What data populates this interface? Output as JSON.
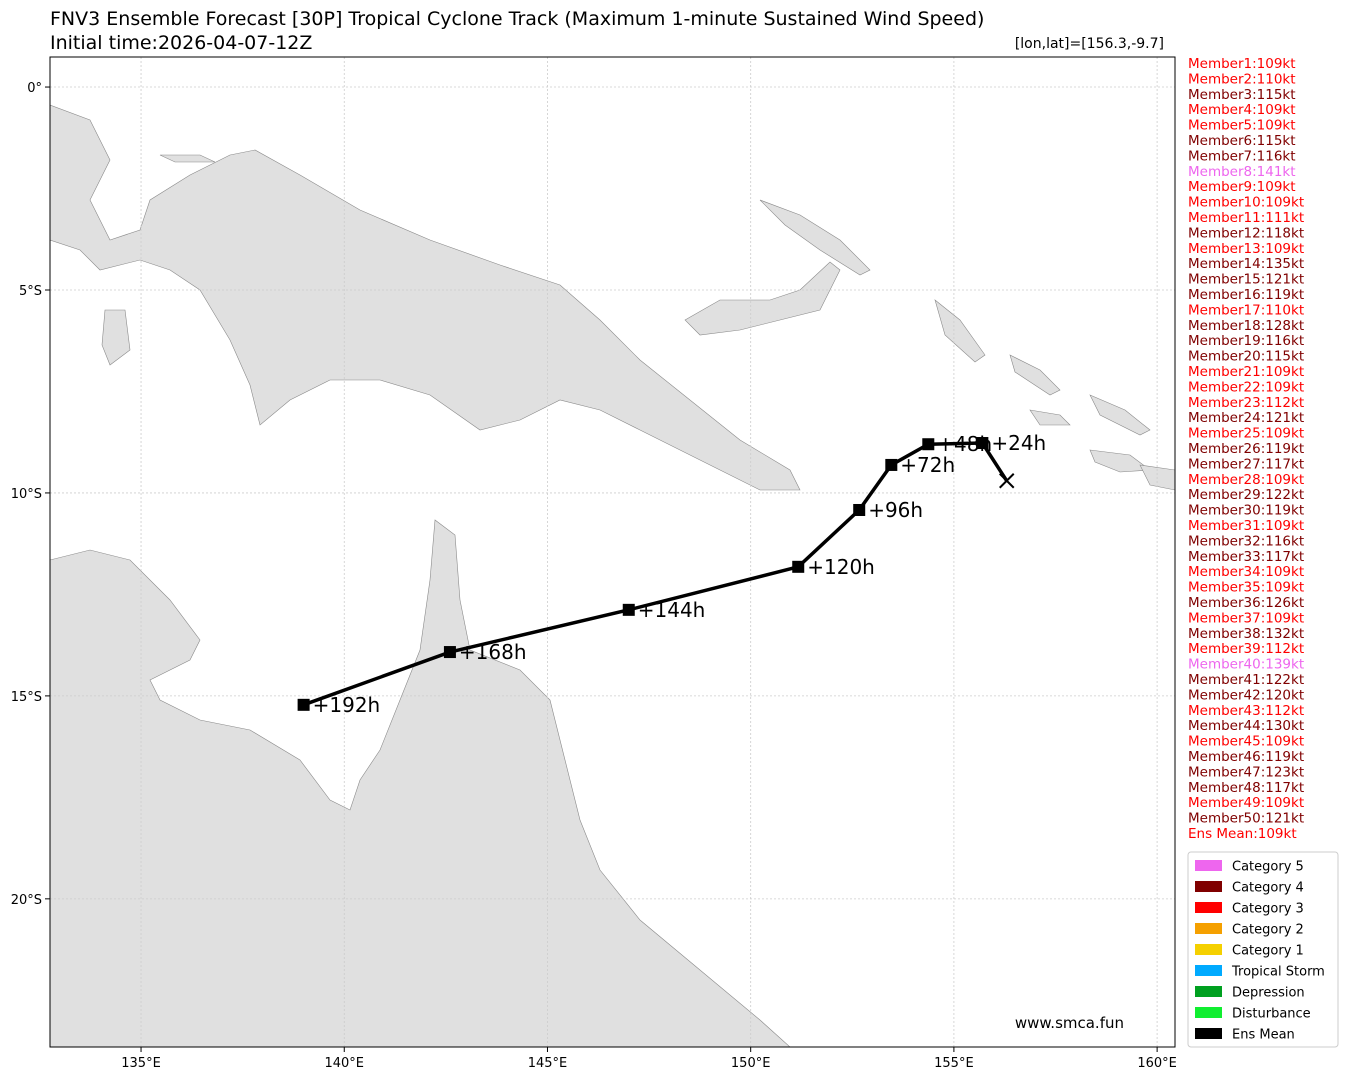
{
  "chart_data": {
    "type": "map",
    "title": "FNV3 Ensemble Forecast [30P] Tropical Cyclone Track (Maximum 1-minute Sustained Wind Speed)",
    "subtitle": "Initial time:2026-04-07-12Z",
    "position_label": "[lon,lat]=[156.3,-9.7]",
    "watermark": "www.smca.fun",
    "xlim": [
      132.76,
      160.44
    ],
    "ylim": [
      -23.65,
      0.74
    ],
    "xticks": [
      {
        "value": 135,
        "label": "135°E"
      },
      {
        "value": 140,
        "label": "140°E"
      },
      {
        "value": 145,
        "label": "145°E"
      },
      {
        "value": 150,
        "label": "150°E"
      },
      {
        "value": 155,
        "label": "155°E"
      },
      {
        "value": 160,
        "label": "160°E"
      }
    ],
    "yticks": [
      {
        "value": 0,
        "label": "0°"
      },
      {
        "value": -5,
        "label": "5°S"
      },
      {
        "value": -10,
        "label": "10°S"
      },
      {
        "value": -15,
        "label": "15°S"
      },
      {
        "value": -20,
        "label": "20°S"
      }
    ],
    "grid": true,
    "series": [
      {
        "name": "Ens Mean",
        "color": "#000000",
        "x": [
          156.3,
          155.7,
          154.37,
          153.46,
          152.67,
          151.17,
          147.0,
          142.6,
          139.0
        ],
        "values": [
          -9.7,
          -8.77,
          -8.8,
          -9.31,
          -10.42,
          -11.82,
          -12.88,
          -13.92,
          -15.22
        ],
        "point_labels": [
          null,
          "+24h",
          "+48h",
          "+72h",
          "+96h",
          "+120h",
          "+144h",
          "+168h",
          "+192h"
        ]
      }
    ],
    "members": [
      {
        "label": "Member1:109kt",
        "color": "#ff0000"
      },
      {
        "label": "Member2:110kt",
        "color": "#ff0000"
      },
      {
        "label": "Member3:115kt",
        "color": "#800000"
      },
      {
        "label": "Member4:109kt",
        "color": "#ff0000"
      },
      {
        "label": "Member5:109kt",
        "color": "#ff0000"
      },
      {
        "label": "Member6:115kt",
        "color": "#800000"
      },
      {
        "label": "Member7:116kt",
        "color": "#800000"
      },
      {
        "label": "Member8:141kt",
        "color": "#ee66ee"
      },
      {
        "label": "Member9:109kt",
        "color": "#ff0000"
      },
      {
        "label": "Member10:109kt",
        "color": "#ff0000"
      },
      {
        "label": "Member11:111kt",
        "color": "#ff0000"
      },
      {
        "label": "Member12:118kt",
        "color": "#800000"
      },
      {
        "label": "Member13:109kt",
        "color": "#ff0000"
      },
      {
        "label": "Member14:135kt",
        "color": "#800000"
      },
      {
        "label": "Member15:121kt",
        "color": "#800000"
      },
      {
        "label": "Member16:119kt",
        "color": "#800000"
      },
      {
        "label": "Member17:110kt",
        "color": "#ff0000"
      },
      {
        "label": "Member18:128kt",
        "color": "#800000"
      },
      {
        "label": "Member19:116kt",
        "color": "#800000"
      },
      {
        "label": "Member20:115kt",
        "color": "#800000"
      },
      {
        "label": "Member21:109kt",
        "color": "#ff0000"
      },
      {
        "label": "Member22:109kt",
        "color": "#ff0000"
      },
      {
        "label": "Member23:112kt",
        "color": "#ff0000"
      },
      {
        "label": "Member24:121kt",
        "color": "#800000"
      },
      {
        "label": "Member25:109kt",
        "color": "#ff0000"
      },
      {
        "label": "Member26:119kt",
        "color": "#800000"
      },
      {
        "label": "Member27:117kt",
        "color": "#800000"
      },
      {
        "label": "Member28:109kt",
        "color": "#ff0000"
      },
      {
        "label": "Member29:122kt",
        "color": "#800000"
      },
      {
        "label": "Member30:119kt",
        "color": "#800000"
      },
      {
        "label": "Member31:109kt",
        "color": "#ff0000"
      },
      {
        "label": "Member32:116kt",
        "color": "#800000"
      },
      {
        "label": "Member33:117kt",
        "color": "#800000"
      },
      {
        "label": "Member34:109kt",
        "color": "#ff0000"
      },
      {
        "label": "Member35:109kt",
        "color": "#ff0000"
      },
      {
        "label": "Member36:126kt",
        "color": "#800000"
      },
      {
        "label": "Member37:109kt",
        "color": "#ff0000"
      },
      {
        "label": "Member38:132kt",
        "color": "#800000"
      },
      {
        "label": "Member39:112kt",
        "color": "#ff0000"
      },
      {
        "label": "Member40:139kt",
        "color": "#ee66ee"
      },
      {
        "label": "Member41:122kt",
        "color": "#800000"
      },
      {
        "label": "Member42:120kt",
        "color": "#800000"
      },
      {
        "label": "Member43:112kt",
        "color": "#ff0000"
      },
      {
        "label": "Member44:130kt",
        "color": "#800000"
      },
      {
        "label": "Member45:109kt",
        "color": "#ff0000"
      },
      {
        "label": "Member46:119kt",
        "color": "#800000"
      },
      {
        "label": "Member47:123kt",
        "color": "#800000"
      },
      {
        "label": "Member48:117kt",
        "color": "#800000"
      },
      {
        "label": "Member49:109kt",
        "color": "#ff0000"
      },
      {
        "label": "Member50:121kt",
        "color": "#800000"
      },
      {
        "label": "Ens Mean:109kt",
        "color": "#ff0000"
      }
    ],
    "legend": [
      {
        "name": "Category 5",
        "color": "#ee66ee"
      },
      {
        "name": "Category 4",
        "color": "#800000"
      },
      {
        "name": "Category 3",
        "color": "#ff0000"
      },
      {
        "name": "Category 2",
        "color": "#f5a000"
      },
      {
        "name": "Category 1",
        "color": "#f5d000"
      },
      {
        "name": "Tropical Storm",
        "color": "#00aaff"
      },
      {
        "name": "Depression",
        "color": "#00a020"
      },
      {
        "name": "Disturbance",
        "color": "#10ee30"
      },
      {
        "name": "Ens Mean",
        "color": "#000000"
      }
    ]
  }
}
